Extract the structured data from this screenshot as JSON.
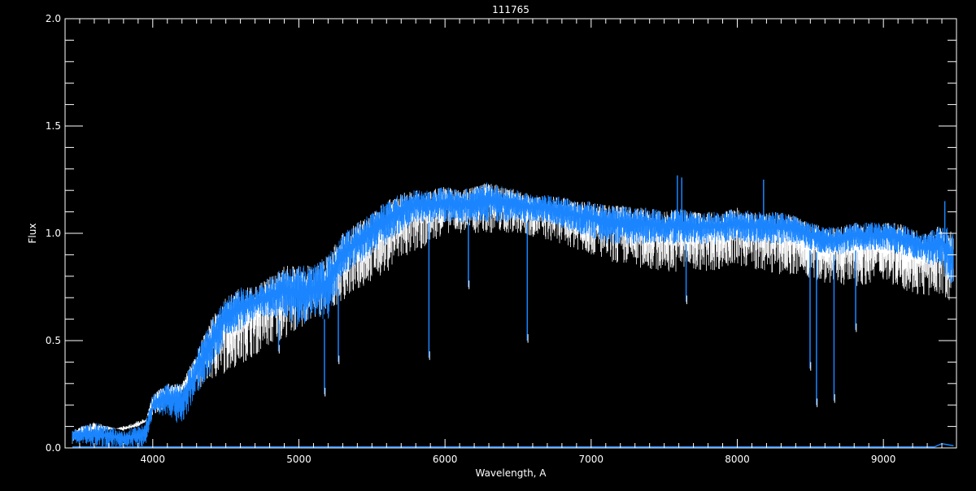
{
  "chart_data": {
    "type": "line",
    "title": "111765",
    "xlabel": "Wavelength, A",
    "ylabel": "Flux",
    "xlim": [
      3400,
      9500
    ],
    "ylim": [
      0.0,
      2.0
    ],
    "x_ticks": [
      4000,
      5000,
      6000,
      7000,
      8000,
      9000
    ],
    "x_tick_labels": [
      "4000",
      "5000",
      "6000",
      "7000",
      "8000",
      "9000"
    ],
    "x_minor_step": 100,
    "y_ticks": [
      0.0,
      0.5,
      1.0,
      1.5,
      2.0
    ],
    "y_tick_labels": [
      "0.0",
      "0.5",
      "1.0",
      "1.5",
      "2.0"
    ],
    "y_minor_step": 0.1,
    "grid": false,
    "colors": {
      "background": "#000000",
      "axes": "#ffffff",
      "spectrum_blue": "#1a85ff",
      "spectrum_white": "#ffffff"
    },
    "series": [
      {
        "color": "#1a85ff",
        "x": [
          3450,
          3500,
          3600,
          3700,
          3800,
          3900,
          3950,
          4000,
          4100,
          4200,
          4300,
          4400,
          4500,
          4600,
          4700,
          4800,
          4900,
          5000,
          5100,
          5200,
          5300,
          5400,
          5500,
          5600,
          5700,
          5800,
          5900,
          6000,
          6100,
          6200,
          6300,
          6400,
          6500,
          6600,
          6700,
          6800,
          6900,
          7000,
          7100,
          7200,
          7300,
          7400,
          7500,
          7600,
          7700,
          7800,
          7900,
          8000,
          8100,
          8200,
          8300,
          8400,
          8500,
          8600,
          8700,
          8800,
          8900,
          9000,
          9100,
          9200,
          9300,
          9400,
          9480
        ],
        "upper": [
          0.08,
          0.1,
          0.12,
          0.1,
          0.08,
          0.1,
          0.12,
          0.25,
          0.3,
          0.3,
          0.45,
          0.6,
          0.7,
          0.75,
          0.75,
          0.8,
          0.85,
          0.85,
          0.85,
          0.9,
          1.0,
          1.05,
          1.1,
          1.15,
          1.2,
          1.2,
          1.2,
          1.22,
          1.2,
          1.22,
          1.24,
          1.22,
          1.2,
          1.18,
          1.18,
          1.17,
          1.15,
          1.15,
          1.13,
          1.13,
          1.12,
          1.12,
          1.1,
          1.12,
          1.1,
          1.1,
          1.1,
          1.12,
          1.1,
          1.1,
          1.1,
          1.08,
          1.05,
          1.03,
          1.03,
          1.05,
          1.05,
          1.05,
          1.05,
          1.02,
          1.0,
          1.05,
          1.0
        ],
        "lower": [
          0.02,
          0.02,
          0.0,
          0.0,
          0.0,
          0.0,
          0.0,
          0.15,
          0.15,
          0.1,
          0.25,
          0.35,
          0.5,
          0.55,
          0.6,
          0.6,
          0.6,
          0.55,
          0.6,
          0.6,
          0.8,
          0.85,
          0.9,
          0.95,
          1.0,
          1.05,
          1.05,
          1.05,
          1.05,
          1.05,
          1.05,
          1.05,
          1.05,
          1.05,
          1.05,
          1.02,
          1.0,
          0.98,
          0.95,
          0.95,
          0.95,
          0.95,
          0.95,
          0.95,
          0.95,
          0.95,
          0.95,
          0.97,
          0.95,
          0.95,
          0.95,
          0.95,
          0.92,
          0.9,
          0.9,
          0.92,
          0.92,
          0.92,
          0.9,
          0.88,
          0.85,
          0.85,
          0.7
        ]
      },
      {
        "color": "#ffffff",
        "x": [
          3450,
          4000,
          5000,
          6000,
          6500,
          6800,
          7000,
          7200,
          7500,
          7800,
          8000,
          8200,
          8500,
          8800,
          9000,
          9200,
          9300,
          9400,
          9480
        ],
        "lower": [
          0.02,
          0.15,
          0.55,
          1.0,
          1.0,
          0.95,
          0.9,
          0.85,
          0.82,
          0.82,
          0.85,
          0.82,
          0.78,
          0.75,
          0.78,
          0.72,
          0.7,
          0.72,
          0.65
        ]
      },
      {
        "color": "#1a85ff",
        "x": [
          3450,
          9350,
          9400,
          9480
        ],
        "values": [
          0.005,
          0.005,
          0.02,
          0.01
        ]
      }
    ],
    "absorption_lines": [
      {
        "x": 4861,
        "y": 0.45
      },
      {
        "x": 5175,
        "y": 0.25
      },
      {
        "x": 5270,
        "y": 0.4
      },
      {
        "x": 5890,
        "y": 0.42
      },
      {
        "x": 6563,
        "y": 0.5
      },
      {
        "x": 6160,
        "y": 0.75
      },
      {
        "x": 8498,
        "y": 0.37
      },
      {
        "x": 8542,
        "y": 0.2
      },
      {
        "x": 8662,
        "y": 0.22
      },
      {
        "x": 8810,
        "y": 0.55
      },
      {
        "x": 7650,
        "y": 0.68
      }
    ],
    "emission_spikes": [
      {
        "x": 7590,
        "y": 1.27
      },
      {
        "x": 7620,
        "y": 1.26
      },
      {
        "x": 8180,
        "y": 1.25
      },
      {
        "x": 9420,
        "y": 1.15
      }
    ]
  }
}
